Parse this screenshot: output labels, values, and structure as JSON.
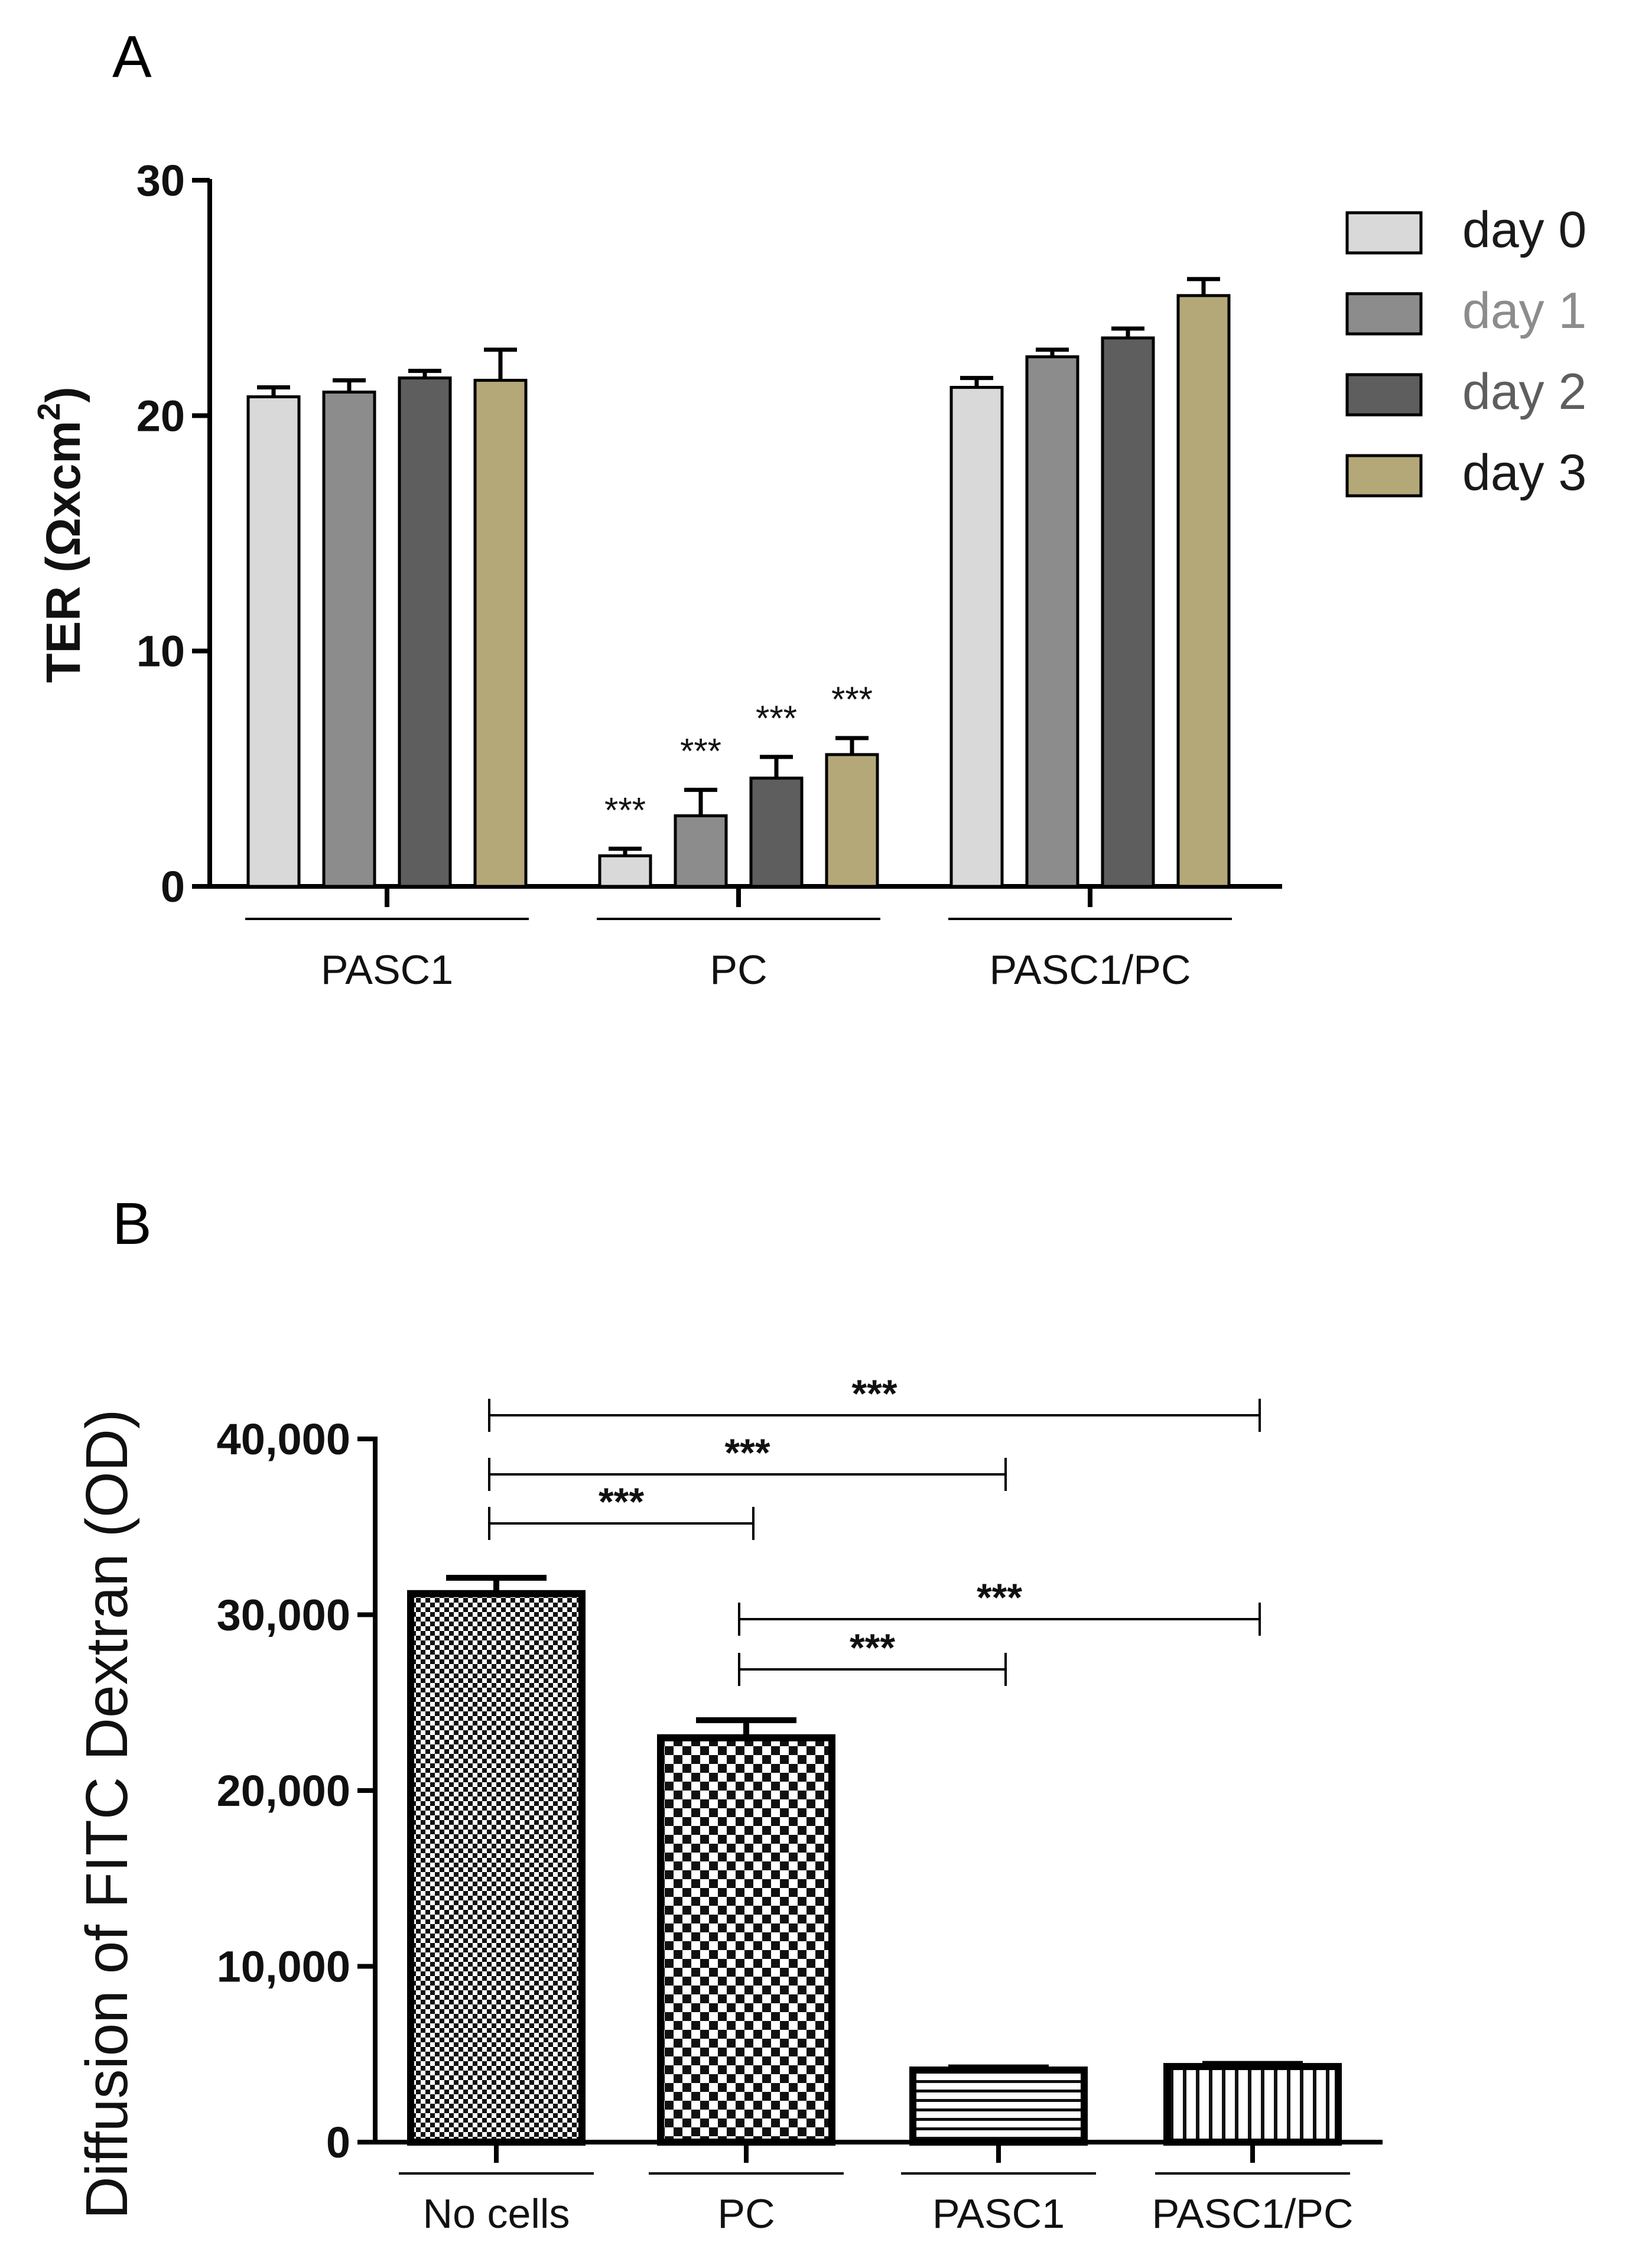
{
  "chart_data": [
    {
      "panel": "A",
      "type": "bar",
      "ylabel": "TER (Ωxcm²)",
      "ylabel_base": "TER (Ωxcm",
      "ylabel_sup": "2",
      "ylabel_end": ")",
      "ylim": [
        0,
        30
      ],
      "yticks": [
        "0",
        "10",
        "20",
        "30"
      ],
      "ytick_values": [
        0,
        10,
        20,
        30
      ],
      "categories": [
        "PASC1",
        "PC",
        "PASC1/PC"
      ],
      "series": [
        {
          "name": "day 0",
          "color": "#d9d9d9",
          "legend_text_color": "#1a1a1a",
          "values": [
            20.8,
            1.3,
            21.2
          ],
          "errors": [
            0.4,
            0.3,
            0.4
          ]
        },
        {
          "name": "day 1",
          "color": "#8c8c8c",
          "legend_text_color": "#8c8c8c",
          "values": [
            21.0,
            3.0,
            22.5
          ],
          "errors": [
            0.5,
            1.1,
            0.3
          ]
        },
        {
          "name": "day 2",
          "color": "#5e5e5e",
          "legend_text_color": "#5e5e5e",
          "values": [
            21.6,
            4.6,
            23.3
          ],
          "errors": [
            0.3,
            0.9,
            0.4
          ]
        },
        {
          "name": "day 3",
          "color": "#b5a878",
          "legend_text_color": "#1a1a1a",
          "values": [
            21.5,
            5.6,
            25.1
          ],
          "errors": [
            1.3,
            0.7,
            0.7
          ]
        }
      ],
      "annotations": [
        {
          "category": "PC",
          "series": "day 0",
          "text": "***"
        },
        {
          "category": "PC",
          "series": "day 1",
          "text": "***"
        },
        {
          "category": "PC",
          "series": "day 2",
          "text": "***"
        },
        {
          "category": "PC",
          "series": "day 3",
          "text": "***"
        }
      ],
      "legend_position": "top-right",
      "grid": false
    },
    {
      "panel": "B",
      "type": "bar",
      "ylabel": "Diffusion of FITC Dextran (OD)",
      "ylim": [
        0,
        40000
      ],
      "yticks": [
        "0",
        "10,000",
        "20,000",
        "30,000",
        "40,000"
      ],
      "ytick_values": [
        0,
        10000,
        20000,
        30000,
        40000
      ],
      "categories": [
        "No cells",
        "PC",
        "PASC1",
        "PASC1/PC"
      ],
      "patterns": [
        "fine-checker",
        "coarse-checker",
        "horizontal-lines",
        "vertical-lines"
      ],
      "values": [
        31200,
        23000,
        4100,
        4300
      ],
      "errors": [
        900,
        1000,
        150,
        150
      ],
      "significance": [
        {
          "from": "No cells",
          "to": "PASC1/PC",
          "text": "***"
        },
        {
          "from": "No cells",
          "to": "PASC1",
          "text": "***"
        },
        {
          "from": "No cells",
          "to": "PC",
          "text": "***"
        },
        {
          "from": "PC",
          "to": "PASC1/PC",
          "text": "***"
        },
        {
          "from": "PC",
          "to": "PASC1",
          "text": "***"
        }
      ],
      "grid": false
    }
  ]
}
